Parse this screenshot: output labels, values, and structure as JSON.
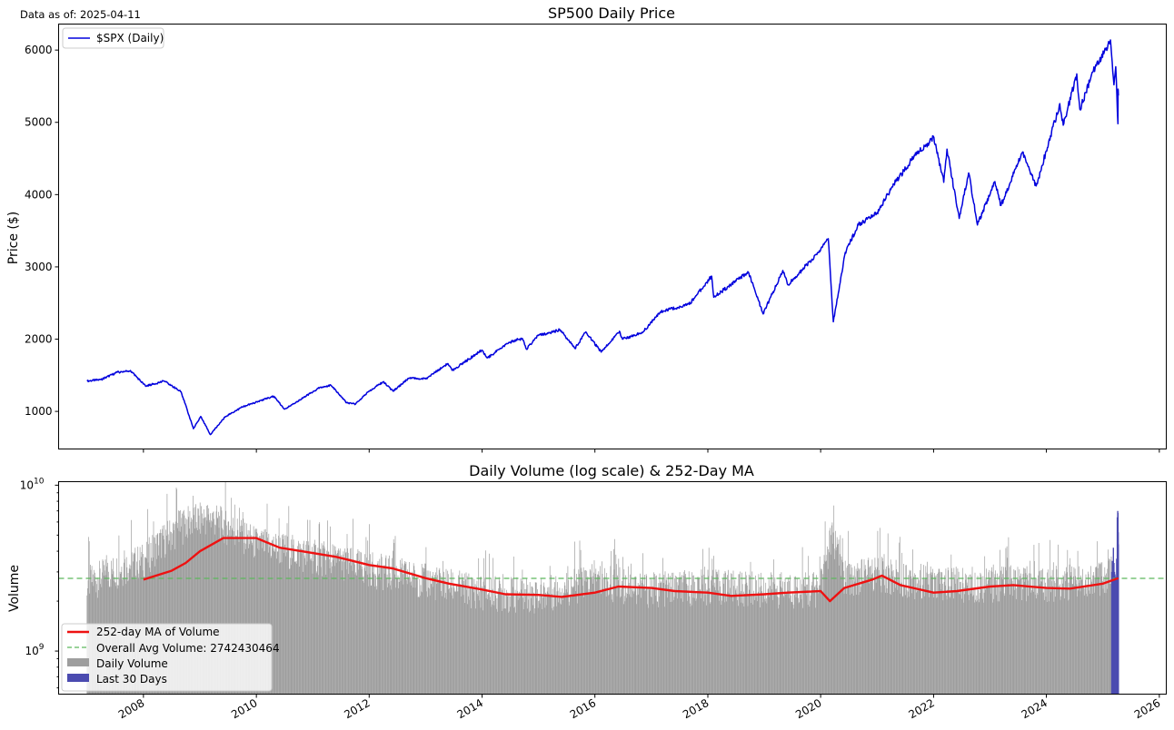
{
  "header": {
    "data_as_of": "Data as of: 2025-04-11"
  },
  "chart_data": [
    {
      "type": "line",
      "title": "SP500 Daily Price",
      "xlabel": "",
      "ylabel": "Price ($)",
      "xlim": [
        "2006-07-01",
        "2026-02-15"
      ],
      "ylim": [
        480,
        6360
      ],
      "yticks": [
        1000,
        2000,
        3000,
        4000,
        5000,
        6000
      ],
      "grid": false,
      "legend_placement": "top-left",
      "color": "#0000dd",
      "series": [
        {
          "name": "$SPX (Daily)",
          "x": [
            "2007-01-01",
            "2007-04-01",
            "2007-07-15",
            "2007-10-09",
            "2008-01-15",
            "2008-05-15",
            "2008-09-01",
            "2008-11-20",
            "2009-01-06",
            "2009-03-09",
            "2009-06-15",
            "2009-10-01",
            "2010-01-15",
            "2010-04-23",
            "2010-07-02",
            "2010-11-01",
            "2011-02-15",
            "2011-04-29",
            "2011-08-08",
            "2011-10-04",
            "2012-01-01",
            "2012-04-01",
            "2012-06-04",
            "2012-09-14",
            "2013-01-01",
            "2013-05-21",
            "2013-06-24",
            "2013-12-31",
            "2014-02-03",
            "2014-06-30",
            "2014-09-18",
            "2014-10-15",
            "2014-12-31",
            "2015-05-21",
            "2015-08-25",
            "2015-11-03",
            "2016-02-11",
            "2016-06-08",
            "2016-06-27",
            "2016-11-04",
            "2017-03-01",
            "2017-09-01",
            "2018-01-26",
            "2018-02-08",
            "2018-09-20",
            "2018-12-24",
            "2019-05-01",
            "2019-06-03",
            "2019-12-31",
            "2020-02-19",
            "2020-03-23",
            "2020-06-08",
            "2020-09-02",
            "2021-01-01",
            "2021-05-01",
            "2021-09-02",
            "2022-01-03",
            "2022-03-08",
            "2022-03-29",
            "2022-06-16",
            "2022-08-16",
            "2022-10-12",
            "2023-02-02",
            "2023-03-13",
            "2023-07-31",
            "2023-10-27",
            "2024-03-28",
            "2024-04-19",
            "2024-07-16",
            "2024-08-05",
            "2024-10-31",
            "2025-02-19",
            "2025-03-13",
            "2025-03-25",
            "2025-04-08",
            "2025-04-09",
            "2025-04-11"
          ],
          "values": [
            1420,
            1440,
            1540,
            1565,
            1350,
            1420,
            1270,
            760,
            930,
            680,
            930,
            1060,
            1140,
            1210,
            1030,
            1190,
            1330,
            1360,
            1120,
            1100,
            1280,
            1410,
            1280,
            1460,
            1450,
            1660,
            1570,
            1848,
            1740,
            1960,
            2010,
            1860,
            2050,
            2130,
            1870,
            2100,
            1820,
            2110,
            2000,
            2090,
            2380,
            2480,
            2870,
            2580,
            2930,
            2350,
            2950,
            2750,
            3230,
            3390,
            2240,
            3200,
            3580,
            3750,
            4180,
            4540,
            4790,
            4170,
            4630,
            3670,
            4300,
            3580,
            4180,
            3850,
            4590,
            4120,
            5260,
            4960,
            5670,
            5180,
            5710,
            6140,
            5520,
            5770,
            4980,
            5460,
            5370
          ]
        }
      ]
    },
    {
      "type": "bar",
      "title": "Daily Volume (log scale) & 252-Day MA",
      "xlabel": "",
      "ylabel": "Volume",
      "yscale": "log",
      "ylim": [
        550000000,
        10500000000
      ],
      "xlim": [
        "2006-07-01",
        "2026-02-15"
      ],
      "xticks": [
        "2008",
        "2010",
        "2012",
        "2014",
        "2016",
        "2018",
        "2020",
        "2022",
        "2024",
        "2026"
      ],
      "yticks_labeled": [
        {
          "value": 1000000000,
          "label": "10^9"
        },
        {
          "value": 10000000000,
          "label": "10^10"
        }
      ],
      "grid": false,
      "legend_placement": "lower-left",
      "series": [
        {
          "name": "252-day MA of Volume",
          "kind": "line",
          "color": "#ee1111",
          "x": [
            "2008-01-01",
            "2008-07-01",
            "2008-10-01",
            "2009-01-01",
            "2009-06-01",
            "2010-01-01",
            "2010-06-01",
            "2011-01-01",
            "2011-06-01",
            "2012-01-01",
            "2012-06-01",
            "2013-01-01",
            "2013-06-01",
            "2014-01-01",
            "2014-06-01",
            "2015-01-01",
            "2015-06-01",
            "2016-01-01",
            "2016-06-01",
            "2017-01-01",
            "2017-06-01",
            "2018-01-01",
            "2018-06-01",
            "2019-01-01",
            "2019-06-01",
            "2020-01-01",
            "2020-03-01",
            "2020-06-01",
            "2020-12-01",
            "2021-02-01",
            "2021-06-01",
            "2022-01-01",
            "2022-06-01",
            "2023-01-01",
            "2023-06-01",
            "2024-01-01",
            "2024-06-01",
            "2025-01-01",
            "2025-04-11"
          ],
          "values": [
            2700000000,
            3050000000,
            3400000000,
            4000000000,
            4800000000,
            4800000000,
            4200000000,
            3900000000,
            3700000000,
            3300000000,
            3150000000,
            2750000000,
            2550000000,
            2350000000,
            2200000000,
            2180000000,
            2120000000,
            2250000000,
            2450000000,
            2400000000,
            2300000000,
            2250000000,
            2150000000,
            2200000000,
            2250000000,
            2300000000,
            2000000000,
            2400000000,
            2700000000,
            2850000000,
            2500000000,
            2250000000,
            2300000000,
            2450000000,
            2500000000,
            2400000000,
            2380000000,
            2550000000,
            2750000000
          ]
        },
        {
          "name": "Overall Avg Volume: 2742430464",
          "kind": "hline",
          "color": "#5cb85c",
          "value": 2742430464
        },
        {
          "name": "Daily Volume",
          "kind": "bars",
          "color": "#9e9e9e",
          "x": [
            "2007-01-01",
            "2008-01-01",
            "2008-10-01",
            "2009-03-01",
            "2010-01-01",
            "2011-01-01",
            "2012-01-01",
            "2013-01-01",
            "2014-01-01",
            "2015-01-01",
            "2016-01-01",
            "2017-01-01",
            "2018-01-01",
            "2019-01-01",
            "2020-01-01",
            "2020-03-15",
            "2020-06-01",
            "2021-01-01",
            "2022-01-01",
            "2023-01-01",
            "2024-01-01",
            "2025-01-01",
            "2025-02-20"
          ],
          "values": [
            2600000000,
            3600000000,
            6000000000,
            6500000000,
            4500000000,
            3800000000,
            3200000000,
            2700000000,
            2300000000,
            2200000000,
            2700000000,
            2400000000,
            2500000000,
            2400000000,
            2400000000,
            5000000000,
            2800000000,
            3000000000,
            2600000000,
            2600000000,
            2600000000,
            2800000000,
            3000000000
          ]
        },
        {
          "name": "Last 30 Days",
          "kind": "bars",
          "color": "#4b4bb0",
          "x": [
            "2025-02-27",
            "2025-03-03",
            "2025-03-06",
            "2025-03-10",
            "2025-03-13",
            "2025-03-17",
            "2025-03-20",
            "2025-03-24",
            "2025-03-27",
            "2025-03-31",
            "2025-04-02",
            "2025-04-04",
            "2025-04-07",
            "2025-04-08",
            "2025-04-09",
            "2025-04-10",
            "2025-04-11"
          ],
          "values": [
            3000000000,
            3500000000,
            3300000000,
            4200000000,
            3400000000,
            3000000000,
            2900000000,
            2800000000,
            2700000000,
            3600000000,
            3100000000,
            6400000000,
            7000000000,
            5600000000,
            6800000000,
            5200000000,
            4400000000
          ]
        }
      ]
    }
  ]
}
